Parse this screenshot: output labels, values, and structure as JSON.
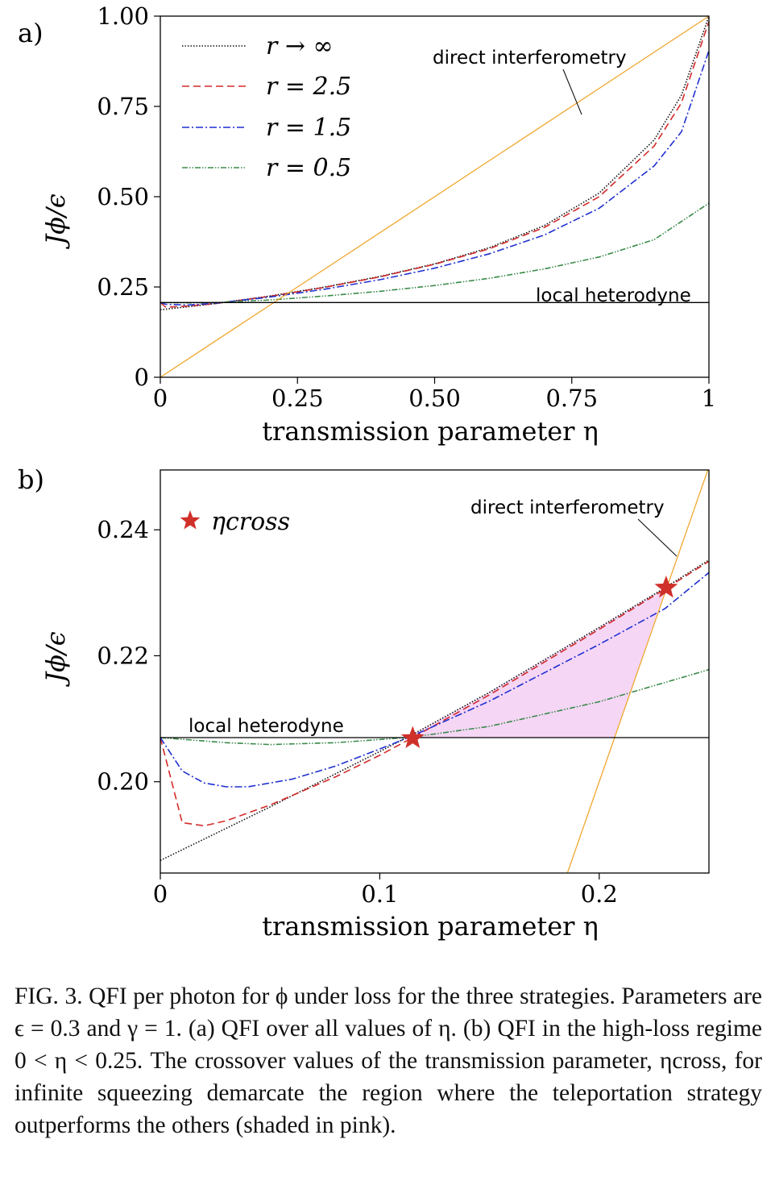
{
  "colors": {
    "inf": "#111111",
    "r25": "#d42a2a",
    "r15": "#1f2fd0",
    "r05": "#3a8a4a",
    "direct": "#f0a830",
    "local": "#000000",
    "star": "#d0302a",
    "shade": "#f5d6f5"
  },
  "chart_data": [
    {
      "type": "line",
      "panel_label": "a)",
      "xlabel": "transmission parameter η",
      "ylabel": "Jϕ/ϵ",
      "xlim": [
        0,
        1
      ],
      "ylim": [
        0,
        1.0
      ],
      "x_ticks": [
        "0",
        "0.25",
        "0.50",
        "0.75",
        "1"
      ],
      "y_ticks": [
        "0",
        "0.25",
        "0.50",
        "0.75",
        "1.00"
      ],
      "legend_position": "top-left",
      "series": [
        {
          "name": "r → ∞",
          "style": "dotted",
          "x": [
            0,
            0.05,
            0.1,
            0.2,
            0.3,
            0.4,
            0.5,
            0.6,
            0.7,
            0.8,
            0.9,
            0.95,
            1.0
          ],
          "y": [
            0.187,
            0.195,
            0.204,
            0.225,
            0.25,
            0.279,
            0.314,
            0.359,
            0.42,
            0.51,
            0.657,
            0.781,
            1.0
          ]
        },
        {
          "name": "r = 2.5",
          "style": "dashed",
          "x": [
            0,
            0.01,
            0.05,
            0.1,
            0.2,
            0.3,
            0.4,
            0.5,
            0.6,
            0.7,
            0.8,
            0.9,
            0.95,
            1.0
          ],
          "y": [
            0.207,
            0.194,
            0.197,
            0.204,
            0.224,
            0.249,
            0.278,
            0.313,
            0.356,
            0.415,
            0.5,
            0.64,
            0.76,
            0.985
          ]
        },
        {
          "name": "r = 1.5",
          "style": "dashdot",
          "x": [
            0,
            0.01,
            0.05,
            0.1,
            0.2,
            0.3,
            0.4,
            0.5,
            0.6,
            0.7,
            0.8,
            0.9,
            0.95,
            1.0
          ],
          "y": [
            0.207,
            0.202,
            0.2,
            0.205,
            0.222,
            0.244,
            0.27,
            0.302,
            0.342,
            0.394,
            0.468,
            0.585,
            0.68,
            0.905
          ]
        },
        {
          "name": "r = 0.5",
          "style": "dashdotdot",
          "x": [
            0,
            0.05,
            0.1,
            0.2,
            0.3,
            0.4,
            0.5,
            0.6,
            0.7,
            0.8,
            0.9,
            1.0
          ],
          "y": [
            0.207,
            0.206,
            0.207,
            0.214,
            0.225,
            0.238,
            0.254,
            0.274,
            0.3,
            0.333,
            0.381,
            0.482
          ]
        },
        {
          "name": "direct interferometry",
          "style": "solid",
          "x": [
            0,
            1
          ],
          "y": [
            0,
            1.0
          ]
        },
        {
          "name": "local heterodyne",
          "style": "solid",
          "x": [
            0,
            1
          ],
          "y": [
            0.207,
            0.207
          ]
        }
      ],
      "annotations": [
        "direct interferometry",
        "local heterodyne"
      ]
    },
    {
      "type": "line",
      "panel_label": "b)",
      "xlabel": "transmission parameter η",
      "ylabel": "Jϕ/ϵ",
      "xlim": [
        0,
        0.25
      ],
      "ylim": [
        0.1855,
        0.2495
      ],
      "x_ticks": [
        "0",
        "0.1",
        "0.2"
      ],
      "y_ticks": [
        "0.20",
        "0.22",
        "0.24"
      ],
      "legend_position": "top-left",
      "legend": "ηcross",
      "series": [
        {
          "name": "r → ∞",
          "style": "dotted",
          "x": [
            0,
            0.05,
            0.1,
            0.115,
            0.15,
            0.2,
            0.23,
            0.25
          ],
          "y": [
            0.1875,
            0.196,
            0.2048,
            0.2075,
            0.2142,
            0.2245,
            0.2308,
            0.2352
          ]
        },
        {
          "name": "r = 2.5",
          "style": "dashed",
          "x": [
            0,
            0.01,
            0.02,
            0.03,
            0.05,
            0.08,
            0.1,
            0.115,
            0.15,
            0.2,
            0.23,
            0.25
          ],
          "y": [
            0.207,
            0.1935,
            0.193,
            0.1938,
            0.1963,
            0.2008,
            0.2042,
            0.207,
            0.2138,
            0.2242,
            0.2306,
            0.235
          ]
        },
        {
          "name": "r = 1.5",
          "style": "dashdot",
          "x": [
            0,
            0.01,
            0.02,
            0.03,
            0.04,
            0.06,
            0.08,
            0.1,
            0.115,
            0.15,
            0.2,
            0.23,
            0.25
          ],
          "y": [
            0.207,
            0.2017,
            0.1998,
            0.1992,
            0.1992,
            0.2004,
            0.2025,
            0.2052,
            0.2073,
            0.2128,
            0.2218,
            0.2275,
            0.2332
          ]
        },
        {
          "name": "r = 0.5",
          "style": "dashdotdot",
          "x": [
            0,
            0.03,
            0.05,
            0.08,
            0.1,
            0.115,
            0.15,
            0.2,
            0.25
          ],
          "y": [
            0.207,
            0.2062,
            0.2059,
            0.2062,
            0.2067,
            0.2071,
            0.2088,
            0.2127,
            0.2178
          ]
        },
        {
          "name": "direct interferometry",
          "style": "solid",
          "x": [
            0.1855,
            0.25
          ],
          "y": [
            0.1855,
            0.25
          ]
        },
        {
          "name": "local heterodyne",
          "style": "solid",
          "x": [
            0,
            0.25
          ],
          "y": [
            0.207,
            0.207
          ]
        }
      ],
      "crossover_points": [
        {
          "x": 0.115,
          "y": 0.2069
        },
        {
          "x": 0.2305,
          "y": 0.2308
        }
      ],
      "shaded_region": {
        "eta_range": [
          0.115,
          0.2305
        ],
        "fill": "pink"
      },
      "annotations": [
        "direct interferometry",
        "local heterodyne"
      ]
    }
  ],
  "caption": "FIG. 3.   QFI per photon for ϕ under loss for the three strategies.  Parameters are ϵ = 0.3 and γ = 1.  (a) QFI over all values of η.  (b) QFI in the high-loss regime 0 < η < 0.25. The crossover values of the transmission parameter, ηcross, for infinite squeezing demarcate the region where the teleportation strategy outperforms the others (shaded in pink)."
}
